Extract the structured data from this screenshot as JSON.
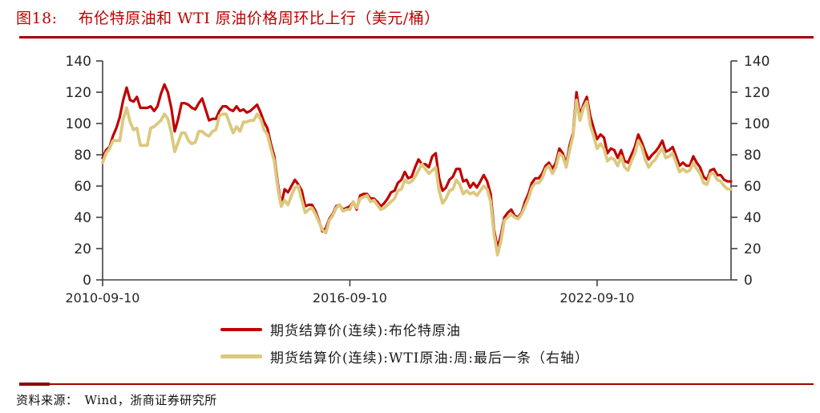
{
  "title": {
    "prefix": "图18:",
    "text": "布伦特原油和 WTI 原油价格周环比上行（美元/桶）"
  },
  "source": {
    "label": "资料来源：",
    "text": "Wind，浙商证券研究所"
  },
  "colors": {
    "accent_red": "#c00000",
    "rule_red": "#a40000",
    "brent_line": "#c00000",
    "wti_line": "#dcc87e",
    "axis": "#404040",
    "tick_text": "#262626"
  },
  "chart_data": {
    "type": "line",
    "x_start": "2010-09-10",
    "x_interval": "monthly",
    "x_ticks": [
      {
        "label": "2010-09-10",
        "index": 0
      },
      {
        "label": "2016-09-10",
        "index": 72
      },
      {
        "label": "2022-09-10",
        "index": 144
      }
    ],
    "y_axis": {
      "min": 0,
      "max": 140,
      "tick_step": 20,
      "ticks": [
        0,
        20,
        40,
        60,
        80,
        100,
        120,
        140
      ],
      "left_axis": true,
      "right_axis": true
    },
    "grid": false,
    "legend_position": "bottom",
    "series": [
      {
        "name": "期货结算价(连续):布伦特原油",
        "axis": "left",
        "color": "#c00000",
        "values": [
          78,
          83,
          85,
          92,
          97,
          104,
          115,
          123,
          115,
          114,
          117,
          110,
          110,
          110,
          111,
          108,
          111,
          119,
          125,
          120,
          110,
          95,
          103,
          113,
          113,
          112,
          110,
          109,
          113,
          116,
          109,
          102,
          103,
          103,
          108,
          111,
          111,
          109,
          108,
          111,
          108,
          109,
          107,
          108,
          110,
          112,
          107,
          101,
          97,
          87,
          79,
          62,
          48,
          58,
          56,
          60,
          64,
          61,
          57,
          47,
          48,
          48,
          44,
          38,
          31,
          33,
          39,
          42,
          47,
          48,
          45,
          46,
          47,
          50,
          45,
          54,
          55,
          55,
          52,
          52,
          50,
          47,
          49,
          52,
          56,
          57,
          62,
          64,
          69,
          65,
          66,
          72,
          77,
          74,
          74,
          72,
          79,
          81,
          65,
          57,
          59,
          64,
          66,
          71,
          71,
          63,
          64,
          59,
          62,
          59,
          63,
          67,
          63,
          55,
          32,
          20,
          29,
          40,
          43,
          45,
          41,
          40,
          43,
          50,
          55,
          62,
          65,
          65,
          68,
          73,
          75,
          71,
          75,
          84,
          81,
          74,
          86,
          94,
          120,
          105,
          112,
          117,
          105,
          97,
          90,
          93,
          91,
          81,
          84,
          83,
          78,
          83,
          76,
          75,
          80,
          85,
          93,
          88,
          82,
          77,
          80,
          82,
          85,
          89,
          82,
          83,
          85,
          79,
          73,
          75,
          73,
          73,
          79,
          75,
          72,
          66,
          64,
          70,
          71,
          67,
          67,
          64,
          63,
          63
        ]
      },
      {
        "name": "期货结算价(连续):WTI原油:周:最后一条（右轴）",
        "axis": "right",
        "color": "#dcc87e",
        "values": [
          75,
          81,
          84,
          89,
          89,
          89,
          103,
          110,
          101,
          96,
          97,
          86,
          86,
          86,
          97,
          98,
          100,
          102,
          106,
          103,
          94,
          82,
          88,
          94,
          94,
          89,
          87,
          88,
          95,
          95,
          93,
          92,
          95,
          96,
          105,
          106,
          106,
          100,
          94,
          98,
          95,
          101,
          101,
          102,
          102,
          106,
          103,
          96,
          93,
          84,
          76,
          59,
          47,
          51,
          48,
          54,
          59,
          60,
          51,
          43,
          45,
          46,
          42,
          37,
          32,
          30,
          38,
          41,
          46,
          48,
          44,
          45,
          45,
          50,
          46,
          52,
          53,
          54,
          50,
          51,
          48,
          45,
          46,
          48,
          50,
          52,
          57,
          58,
          64,
          62,
          63,
          66,
          70,
          74,
          71,
          68,
          70,
          72,
          57,
          49,
          52,
          57,
          58,
          64,
          61,
          55,
          57,
          55,
          56,
          54,
          57,
          60,
          58,
          50,
          29,
          16,
          25,
          38,
          40,
          42,
          40,
          39,
          42,
          47,
          52,
          59,
          62,
          62,
          65,
          71,
          73,
          68,
          72,
          81,
          79,
          72,
          83,
          92,
          115,
          102,
          110,
          114,
          99,
          92,
          84,
          87,
          84,
          76,
          78,
          77,
          73,
          79,
          72,
          70,
          76,
          81,
          89,
          85,
          77,
          72,
          75,
          77,
          81,
          84,
          78,
          79,
          81,
          75,
          69,
          71,
          69,
          70,
          75,
          71,
          68,
          62,
          61,
          68,
          68,
          64,
          63,
          60,
          58,
          58
        ]
      }
    ]
  }
}
